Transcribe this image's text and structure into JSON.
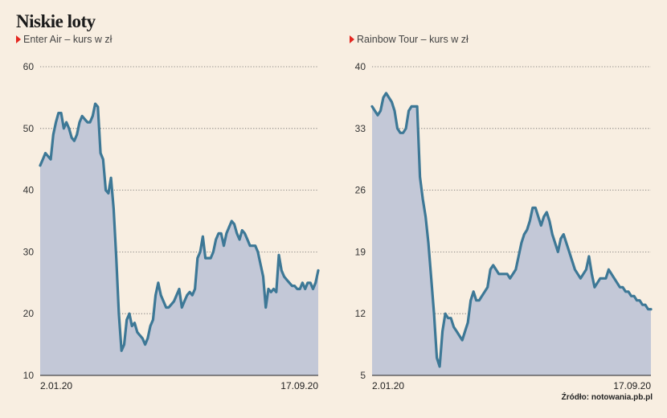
{
  "title": "Niskie loty",
  "source": "Źródło: notowania.pb.pl",
  "colors": {
    "background": "#f8eee1",
    "line": "#3d7896",
    "fill": "#c3c8d7",
    "accent": "#e4261f",
    "grid": "#666666"
  },
  "chart_data": [
    {
      "type": "area",
      "subtitle": "Enter Air – kurs w zł",
      "ylim": [
        10,
        60
      ],
      "yticks": [
        "60",
        "50",
        "40",
        "30",
        "20",
        "10"
      ],
      "ytick_values": [
        60,
        50,
        40,
        30,
        20,
        10
      ],
      "xtick_labels": [
        "2.01.20",
        "17.09.20"
      ],
      "grid": true,
      "values": [
        44,
        45,
        46,
        45.5,
        45,
        49,
        51,
        52.5,
        52.5,
        50,
        51,
        50,
        48.5,
        48,
        49,
        51,
        52,
        51.5,
        51,
        51,
        52,
        54,
        53.5,
        46,
        45,
        40,
        39.5,
        42,
        37,
        29,
        20,
        14,
        15,
        19,
        20,
        18,
        18.5,
        17,
        16.5,
        16,
        15,
        16,
        18,
        19,
        23,
        25,
        23,
        22,
        21,
        21,
        21.5,
        22,
        23,
        24,
        21,
        22,
        23,
        23.5,
        23,
        24,
        29,
        30,
        32.5,
        29,
        29,
        29,
        30,
        32,
        33,
        33,
        31,
        33,
        34,
        35,
        34.5,
        33,
        32,
        33.5,
        33,
        32,
        31,
        31,
        31,
        30,
        28,
        26,
        21,
        24,
        23.5,
        24,
        23.5,
        29.5,
        27,
        26,
        25.5,
        25,
        24.5,
        24.5,
        24,
        24,
        25,
        24,
        25,
        25,
        24,
        25,
        27
      ]
    },
    {
      "type": "area",
      "subtitle": "Rainbow Tour – kurs w zł",
      "ylim": [
        5,
        40
      ],
      "yticks": [
        "40",
        "33",
        "26",
        "19",
        "12",
        "5"
      ],
      "ytick_values": [
        40,
        33,
        26,
        19,
        12,
        5
      ],
      "xtick_labels": [
        "2.01.20",
        "17.09.20"
      ],
      "grid": true,
      "values": [
        35.5,
        35,
        34.5,
        35,
        36.5,
        37,
        36.5,
        36,
        35,
        33,
        32.5,
        32.5,
        33,
        35,
        35.5,
        35.5,
        35.5,
        27.5,
        25,
        23,
        20,
        16,
        12,
        7,
        6,
        10,
        12,
        11.5,
        11.5,
        10.5,
        10,
        9.5,
        9,
        10,
        11,
        13.5,
        14.5,
        13.5,
        13.5,
        14,
        14.5,
        15,
        17,
        17.5,
        17,
        16.5,
        16.5,
        16.5,
        16.5,
        16,
        16.5,
        17,
        18.5,
        20,
        21,
        21.5,
        22.5,
        24,
        24,
        23,
        22,
        23,
        23.5,
        22.5,
        21,
        20,
        19,
        20.5,
        21,
        20,
        19,
        18,
        17,
        16.5,
        16,
        16.5,
        17,
        18.5,
        16.5,
        15,
        15.5,
        16,
        16,
        16,
        17,
        16.5,
        16,
        15.5,
        15,
        15,
        14.5,
        14.5,
        14,
        14,
        13.5,
        13.5,
        13,
        13,
        12.5,
        12.5
      ]
    }
  ]
}
